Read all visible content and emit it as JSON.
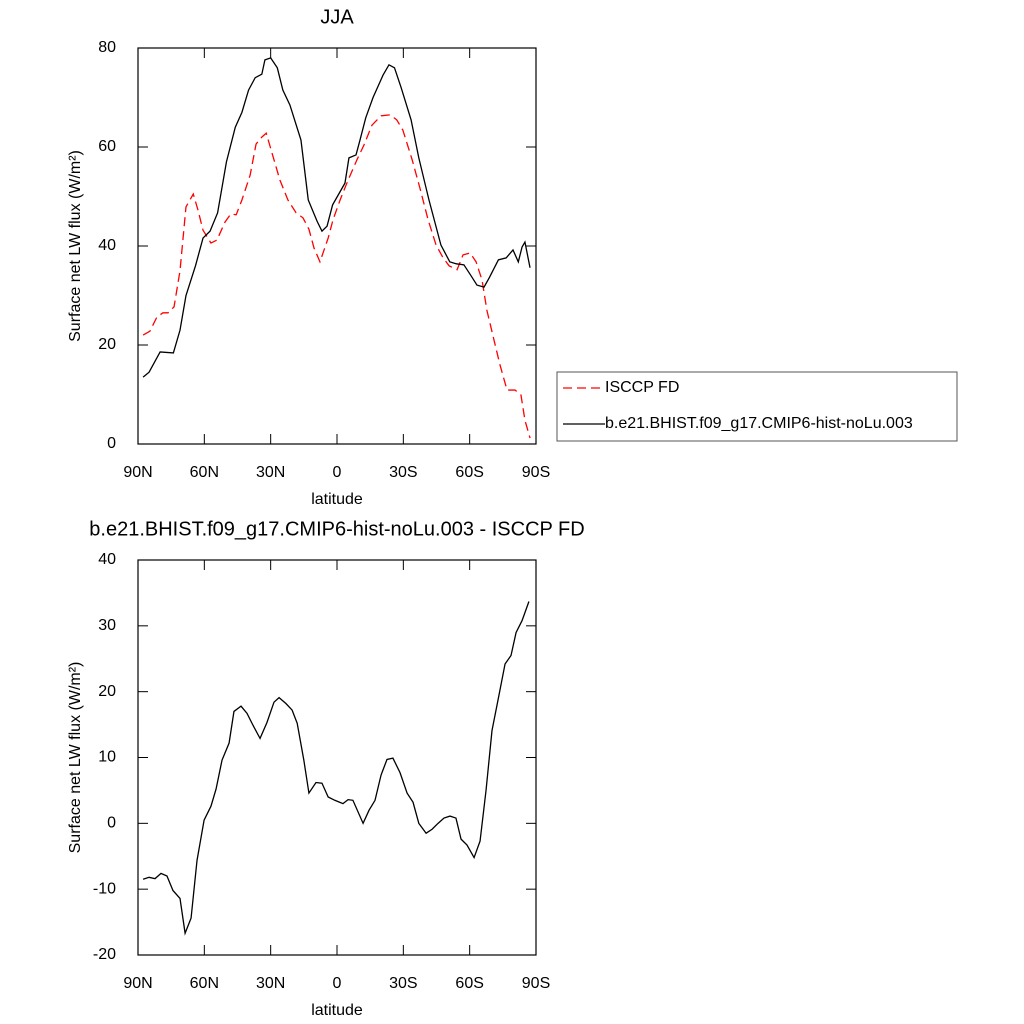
{
  "chart_data": [
    {
      "type": "line",
      "title": "JJA",
      "x_label": "latitude",
      "y_label": "Surface net LW flux (W/m²)",
      "xlim": [
        90,
        -90
      ],
      "xticks": [
        {
          "value": 90,
          "label": "90N"
        },
        {
          "value": 60,
          "label": "60N"
        },
        {
          "value": 30,
          "label": "30N"
        },
        0,
        {
          "value": -30,
          "label": "30S"
        },
        {
          "value": -60,
          "label": "60S"
        },
        {
          "value": -90,
          "label": "90S"
        }
      ],
      "ylim": [
        0,
        80
      ],
      "yticks": [
        0,
        20,
        40,
        60,
        80
      ],
      "legend": "right",
      "series": [
        {
          "name": "ISCCP FD",
          "color": "#ff0000",
          "dashed": true,
          "x": [
            87.7,
            84.6,
            81.4,
            78.7,
            76.4,
            73.7,
            71,
            68.3,
            65,
            62.9,
            60.6,
            57,
            54.3,
            50.7,
            48,
            45.6,
            43,
            39.3,
            36.6,
            34,
            32,
            29.8,
            25.8,
            22.2,
            18.5,
            15.4,
            12.7,
            10.4,
            7.7,
            4,
            1.8,
            -1.4,
            -5,
            -9,
            -12.2,
            -15.8,
            -19.9,
            -24,
            -27,
            -29.8,
            -34,
            -37.5,
            -41.2,
            -44.8,
            -48,
            -50.7,
            -54.3,
            -57,
            -60.2,
            -62.9,
            -65.6,
            -67.8,
            -71,
            -73.7,
            -76.9,
            -80.5,
            -83.2,
            -85,
            -87.3
          ],
          "values": [
            22,
            22.8,
            25.7,
            26.5,
            26.5,
            27.7,
            35,
            47.9,
            50.5,
            47.3,
            43.2,
            40.6,
            41.2,
            44.8,
            46.5,
            46.3,
            49.3,
            54.3,
            60.6,
            62,
            62.8,
            59.4,
            53.3,
            49.3,
            46.7,
            45.7,
            43.4,
            39.6,
            36.8,
            41.6,
            45.3,
            49.3,
            53.3,
            57.4,
            60.4,
            64.4,
            66.3,
            66.5,
            65.5,
            63.4,
            57.4,
            51.7,
            45.3,
            40.2,
            37.6,
            36,
            35.2,
            38.2,
            38.6,
            36.8,
            33.1,
            27,
            21,
            16,
            10.9,
            10.9,
            9.9,
            4.8,
            1.2
          ]
        },
        {
          "name": "b.e21.BHIST.f09_g17.CMIP6-hist-noLu.003",
          "color": "#000000",
          "dashed": false,
          "x": [
            87.7,
            85,
            80,
            74,
            71,
            68.3,
            64,
            60.6,
            57.4,
            54,
            50,
            46,
            43,
            40,
            37,
            34,
            32.6,
            30,
            27,
            24.5,
            21.3,
            16.3,
            13,
            9,
            6.8,
            4.5,
            2,
            -3.6,
            -5.4,
            -8.6,
            -10.4,
            -13,
            -16.3,
            -20.8,
            -23.5,
            -26,
            -29,
            -33.5,
            -37,
            -41.6,
            -47,
            -51,
            -54,
            -57.4,
            -60.6,
            -63.3,
            -66.5,
            -69,
            -73,
            -76.5,
            -79.6,
            -82,
            -83.7,
            -85,
            -87.3
          ],
          "values": [
            13.5,
            14.5,
            18.6,
            18.4,
            23,
            30,
            36,
            41.6,
            43,
            46.7,
            57,
            64,
            67,
            71.5,
            74,
            74.7,
            77.6,
            78,
            76,
            71.5,
            68.5,
            61.4,
            49.3,
            45,
            43,
            44,
            48.3,
            52.7,
            57.8,
            58.4,
            61.4,
            65.9,
            70,
            74.5,
            76.6,
            76,
            72,
            65.5,
            57.8,
            49.3,
            40.2,
            36.8,
            36.4,
            36.2,
            34,
            32.1,
            31.7,
            33.7,
            37.2,
            37.6,
            39.2,
            36.8,
            39.8,
            40.8,
            35.6
          ]
        }
      ]
    },
    {
      "type": "line",
      "title": "b.e21.BHIST.f09_g17.CMIP6-hist-noLu.003 - ISCCP FD",
      "x_label": "latitude",
      "y_label": "Surface net LW flux (W/m²)",
      "xlim": [
        90,
        -90
      ],
      "xticks": [
        {
          "value": 90,
          "label": "90N"
        },
        {
          "value": 60,
          "label": "60N"
        },
        {
          "value": 30,
          "label": "30N"
        },
        0,
        {
          "value": -30,
          "label": "30S"
        },
        {
          "value": -60,
          "label": "60S"
        },
        {
          "value": -90,
          "label": "90S"
        }
      ],
      "ylim": [
        -20,
        40
      ],
      "yticks": [
        -20,
        -10,
        0,
        10,
        20,
        30,
        40
      ],
      "series": [
        {
          "color": "#000000",
          "dashed": false,
          "x": [
            87.7,
            85,
            82.3,
            79.6,
            76.9,
            74.2,
            71,
            68.7,
            66,
            63.3,
            60.1,
            57,
            54.7,
            52,
            48.8,
            46.6,
            43.4,
            40.7,
            38,
            34.8,
            31.7,
            28.5,
            26.2,
            23.1,
            20.3,
            18,
            15,
            12.7,
            9.5,
            6.8,
            4,
            1,
            -2.7,
            -5,
            -7.2,
            -11.8,
            -14.5,
            -17.2,
            -19.9,
            -22.6,
            -25.3,
            -28.5,
            -31.7,
            -34.4,
            -37,
            -40.3,
            -43,
            -45.7,
            -48.4,
            -51.1,
            -53.8,
            -56.1,
            -58.8,
            -62,
            -64.7,
            -67.4,
            -70.1,
            -72.8,
            -76,
            -78.7,
            -81,
            -83.7,
            -86.8
          ],
          "values": [
            -8.5,
            -8.2,
            -8.4,
            -7.6,
            -8,
            -10.2,
            -11.4,
            -16.7,
            -14.4,
            -5.6,
            0.5,
            2.6,
            5.2,
            9.6,
            12.2,
            17,
            17.8,
            16.7,
            14.9,
            12.9,
            15.3,
            18.4,
            19.1,
            18.2,
            17.2,
            15.2,
            9.6,
            4.6,
            6.2,
            6.1,
            4,
            3.5,
            3,
            3.6,
            3.5,
            0,
            2,
            3.5,
            7.3,
            9.7,
            9.9,
            7.7,
            4.6,
            3.2,
            0,
            -1.5,
            -0.9,
            0,
            0.8,
            1.1,
            0.8,
            -2.4,
            -3.3,
            -5.2,
            -2.7,
            5,
            14.1,
            18.7,
            24.2,
            25.5,
            29,
            30.8,
            33.7
          ]
        }
      ]
    }
  ]
}
